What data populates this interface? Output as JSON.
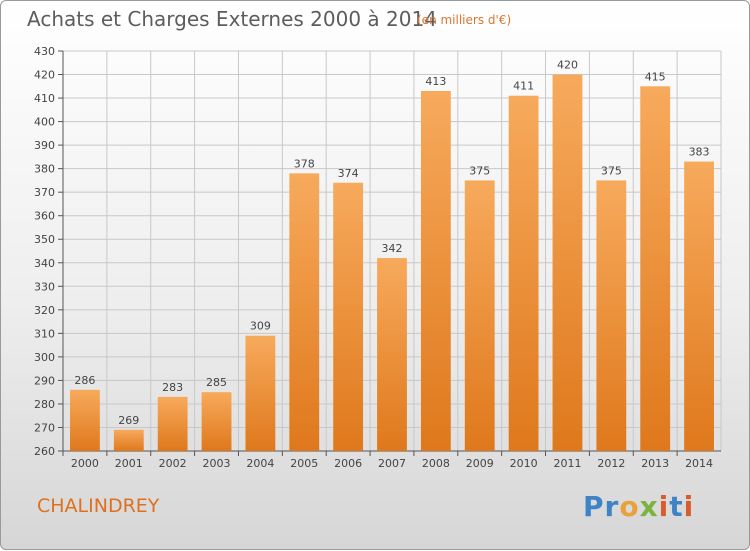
{
  "header": {
    "title": "Achats et Charges Externes 2000 à 2014",
    "subtitle": "(en milliers d'€)"
  },
  "footer": {
    "city": "CHALINDREY",
    "logo": "Proxiti"
  },
  "colors": {
    "bar_light": "#f6a657",
    "bar_dark": "#e07a1f",
    "city": "#e0701e",
    "grid": "#c8c8c8"
  },
  "chart_data": {
    "type": "bar",
    "title": "Achats et Charges Externes 2000 à 2014",
    "subtitle": "(en milliers d'€)",
    "categories": [
      "2000",
      "2001",
      "2002",
      "2003",
      "2004",
      "2005",
      "2006",
      "2007",
      "2008",
      "2009",
      "2010",
      "2011",
      "2012",
      "2013",
      "2014"
    ],
    "values": [
      286,
      269,
      283,
      285,
      309,
      378,
      374,
      342,
      413,
      375,
      411,
      420,
      375,
      415,
      383
    ],
    "ylim": [
      260,
      430
    ],
    "yticks": [
      260,
      270,
      280,
      290,
      300,
      310,
      320,
      330,
      340,
      350,
      360,
      370,
      380,
      390,
      400,
      410,
      420,
      430
    ],
    "grid": true,
    "data_labels": true,
    "legend": "none"
  }
}
